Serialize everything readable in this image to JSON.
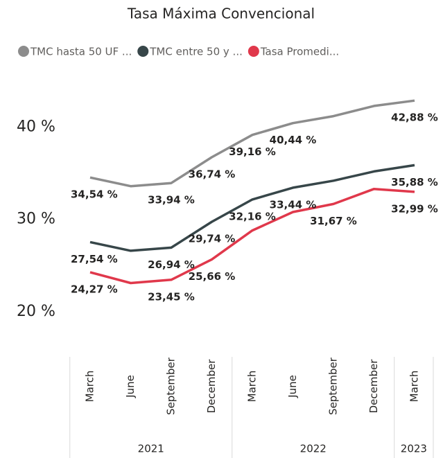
{
  "chart_data": {
    "type": "line",
    "title": "Tasa Máxima Convencional",
    "groups": [
      {
        "label": "2021",
        "categories": [
          "March",
          "June",
          "September",
          "December"
        ]
      },
      {
        "label": "2022",
        "categories": [
          "March",
          "June",
          "September",
          "December"
        ]
      },
      {
        "label": "2023",
        "categories": [
          "March"
        ]
      }
    ],
    "series": [
      {
        "name": "TMC hasta 50 UF ...",
        "color": "#8c8c8c",
        "values": [
          34.54,
          33.6,
          33.94,
          36.74,
          39.16,
          40.44,
          41.2,
          42.3,
          42.88
        ],
        "value_labels": [
          "34,54 %",
          null,
          "33,94 %",
          "36,74 %",
          "39,16 %",
          "40,44 %",
          null,
          null,
          "42,88 %"
        ]
      },
      {
        "name": "TMC entre 50 y ...",
        "color": "#374649",
        "values": [
          27.54,
          26.6,
          26.94,
          29.74,
          32.16,
          33.44,
          34.2,
          35.2,
          35.88
        ],
        "value_labels": [
          "27,54 %",
          null,
          "26,94 %",
          "29,74 %",
          "32,16 %",
          "33,44 %",
          null,
          null,
          "35,88 %"
        ]
      },
      {
        "name": "Tasa Promedi...",
        "color": "#e0384b",
        "values": [
          24.27,
          23.1,
          23.45,
          25.66,
          28.8,
          30.8,
          31.67,
          33.3,
          32.99
        ],
        "value_labels": [
          "24,27 %",
          null,
          "23,45 %",
          "25,66 %",
          null,
          null,
          "31,67 %",
          null,
          "32,99 %"
        ]
      }
    ],
    "ylim": [
      16,
      45
    ],
    "yticks": [
      {
        "value": 20,
        "label": "20 %"
      },
      {
        "value": 30,
        "label": "30 %"
      },
      {
        "value": 40,
        "label": "40 %"
      }
    ]
  }
}
